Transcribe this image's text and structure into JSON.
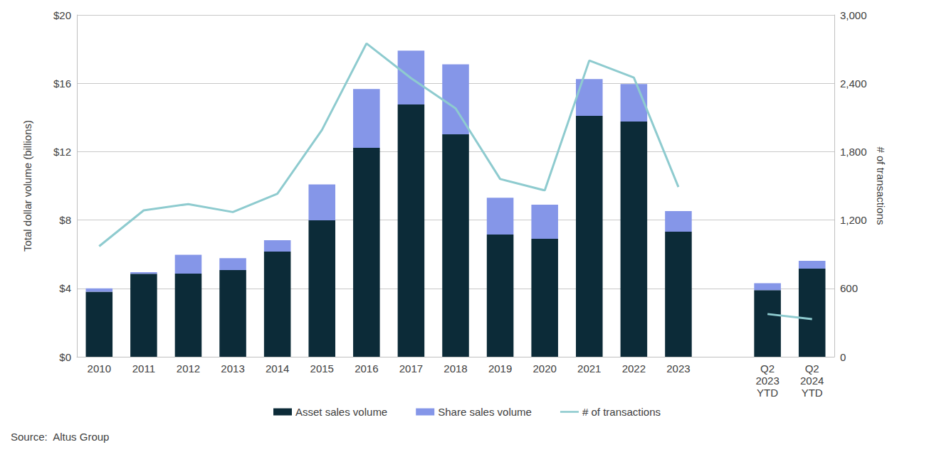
{
  "chart_data": {
    "type": "bar",
    "stacked": true,
    "grid": true,
    "legend": "bottom",
    "source": "Source:  Altus Group",
    "y_label": "Total dollar volume (billions)",
    "y2_label": "# of transactions",
    "categories": [
      "2010",
      "2011",
      "2012",
      "2013",
      "2014",
      "2015",
      "2016",
      "2017",
      "2018",
      "2019",
      "2020",
      "2021",
      "2022",
      "2023",
      null,
      "Q2\n2023\nYTD",
      "Q2\n2024\nYTD"
    ],
    "ylim": [
      0,
      20
    ],
    "yticks": [
      {
        "value": 0,
        "label": "$0"
      },
      {
        "value": 4,
        "label": "$4"
      },
      {
        "value": 8,
        "label": "$8"
      },
      {
        "value": 12,
        "label": "$12"
      },
      {
        "value": 16,
        "label": "$16"
      },
      {
        "value": 20,
        "label": "$20"
      }
    ],
    "y2lim": [
      0,
      3000
    ],
    "y2ticks": [
      0,
      600,
      {
        "value": 1200,
        "label": "1,200"
      },
      {
        "value": 1800,
        "label": "1,800"
      },
      {
        "value": 2400,
        "label": "2,400"
      },
      {
        "value": 3000,
        "label": "3,000"
      }
    ],
    "series": [
      {
        "name": "Asset sales volume",
        "type": "bar",
        "color": "#0c2b38",
        "values": [
          3.8,
          4.85,
          4.87,
          5.07,
          6.15,
          7.98,
          12.22,
          14.76,
          13.01,
          7.15,
          6.9,
          14.1,
          13.76,
          7.32,
          null,
          3.9,
          5.16
        ]
      },
      {
        "name": "Share sales volume",
        "type": "bar",
        "color": "#8596e8",
        "values": [
          0.2,
          0.1,
          1.1,
          0.7,
          0.67,
          2.1,
          3.45,
          3.15,
          4.1,
          2.15,
          2.0,
          2.15,
          2.2,
          1.2,
          null,
          0.4,
          0.45
        ]
      },
      {
        "name": "# of transactions",
        "type": "line",
        "axis": "y2",
        "color": "#8ecbcf",
        "values": [
          970,
          1285,
          1340,
          1270,
          1430,
          1990,
          2750,
          2445,
          2180,
          1560,
          1460,
          2600,
          2450,
          1490,
          null,
          375,
          330
        ]
      }
    ]
  }
}
